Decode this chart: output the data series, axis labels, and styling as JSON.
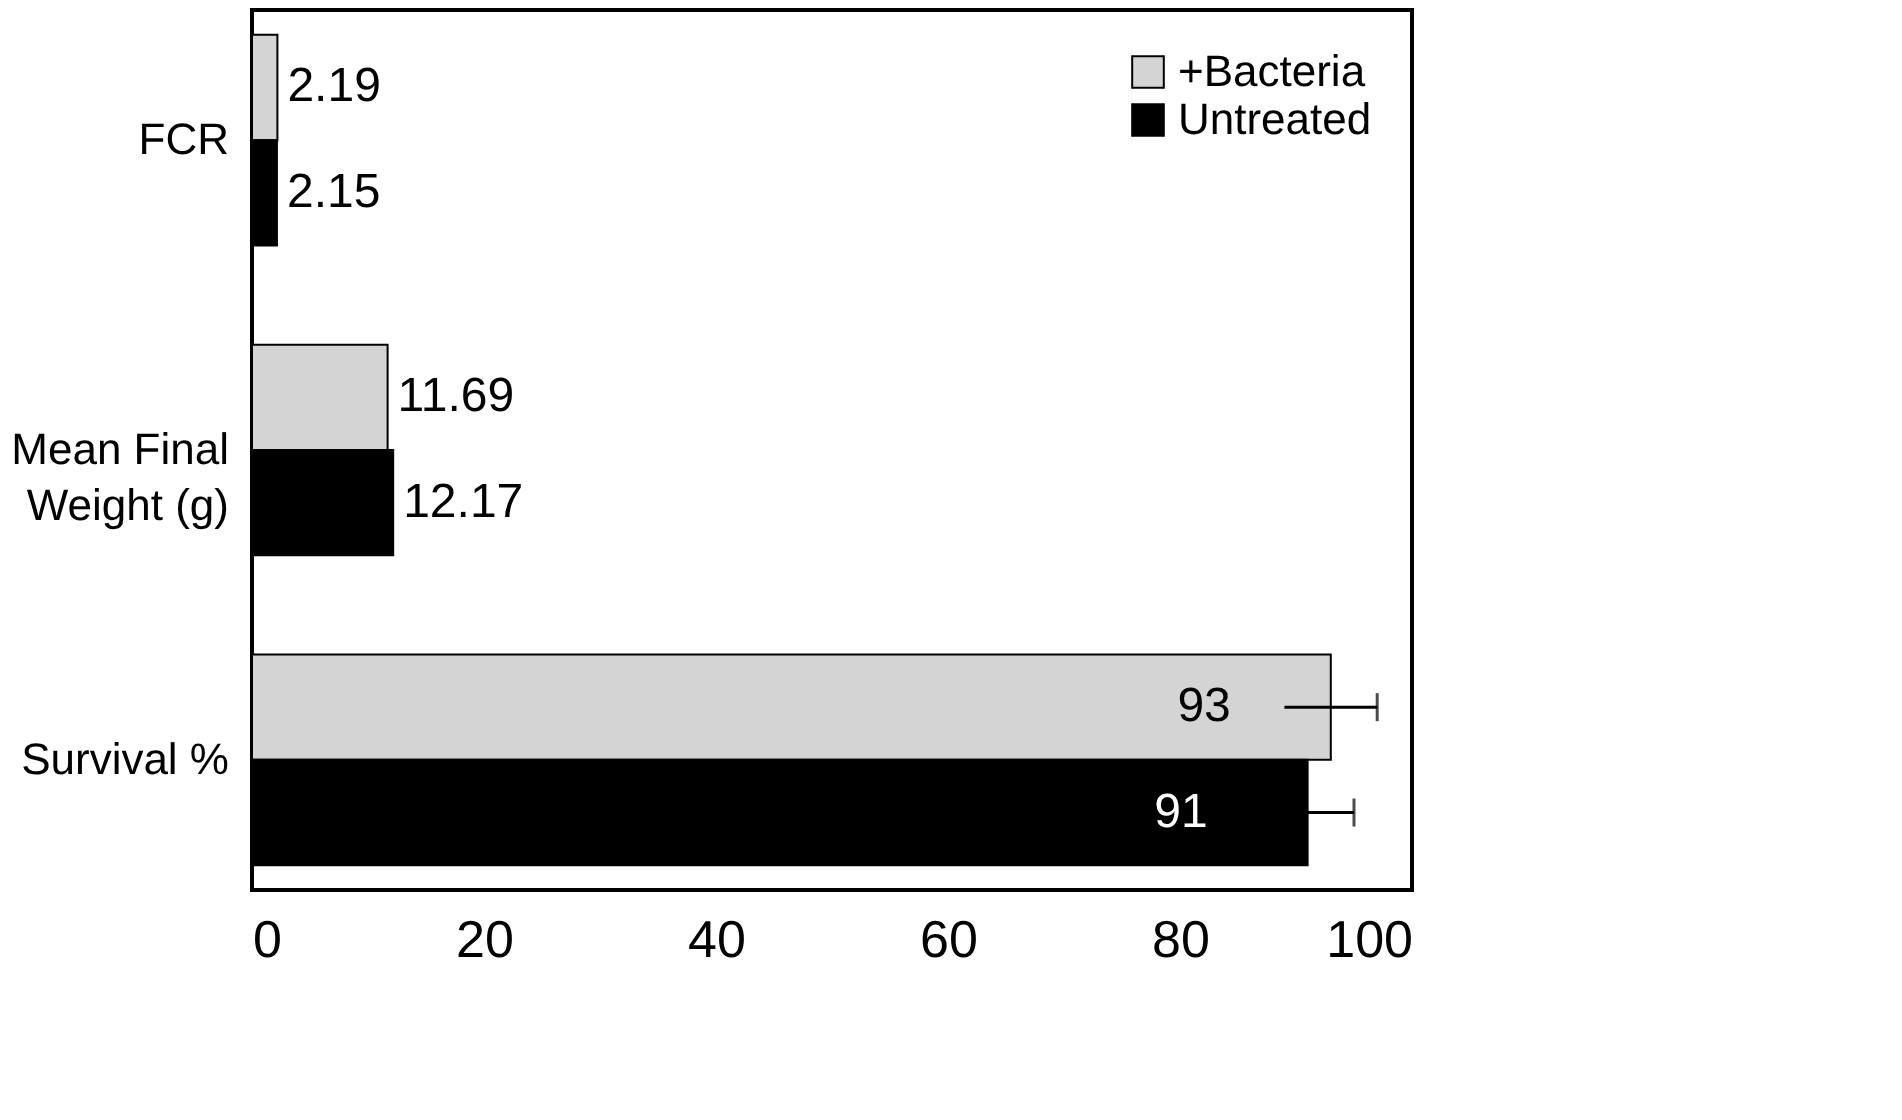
{
  "chart_data": {
    "type": "bar",
    "orientation": "horizontal",
    "categories": [
      "FCR",
      "Mean Final\nWeight (g)",
      "Survival %"
    ],
    "series": [
      {
        "name": "+Bacteria",
        "color": "#d4d4d4",
        "values": [
          2.19,
          11.69,
          93
        ],
        "errors": [
          null,
          null,
          4
        ]
      },
      {
        "name": "Untreated",
        "color": "#000000",
        "values": [
          2.15,
          12.17,
          91
        ],
        "errors": [
          null,
          null,
          4
        ]
      }
    ],
    "xlim": [
      0,
      100
    ],
    "xticks": [
      0,
      20,
      40,
      60,
      80,
      100
    ],
    "data_labels": true,
    "legend": "top right",
    "grid": false
  }
}
